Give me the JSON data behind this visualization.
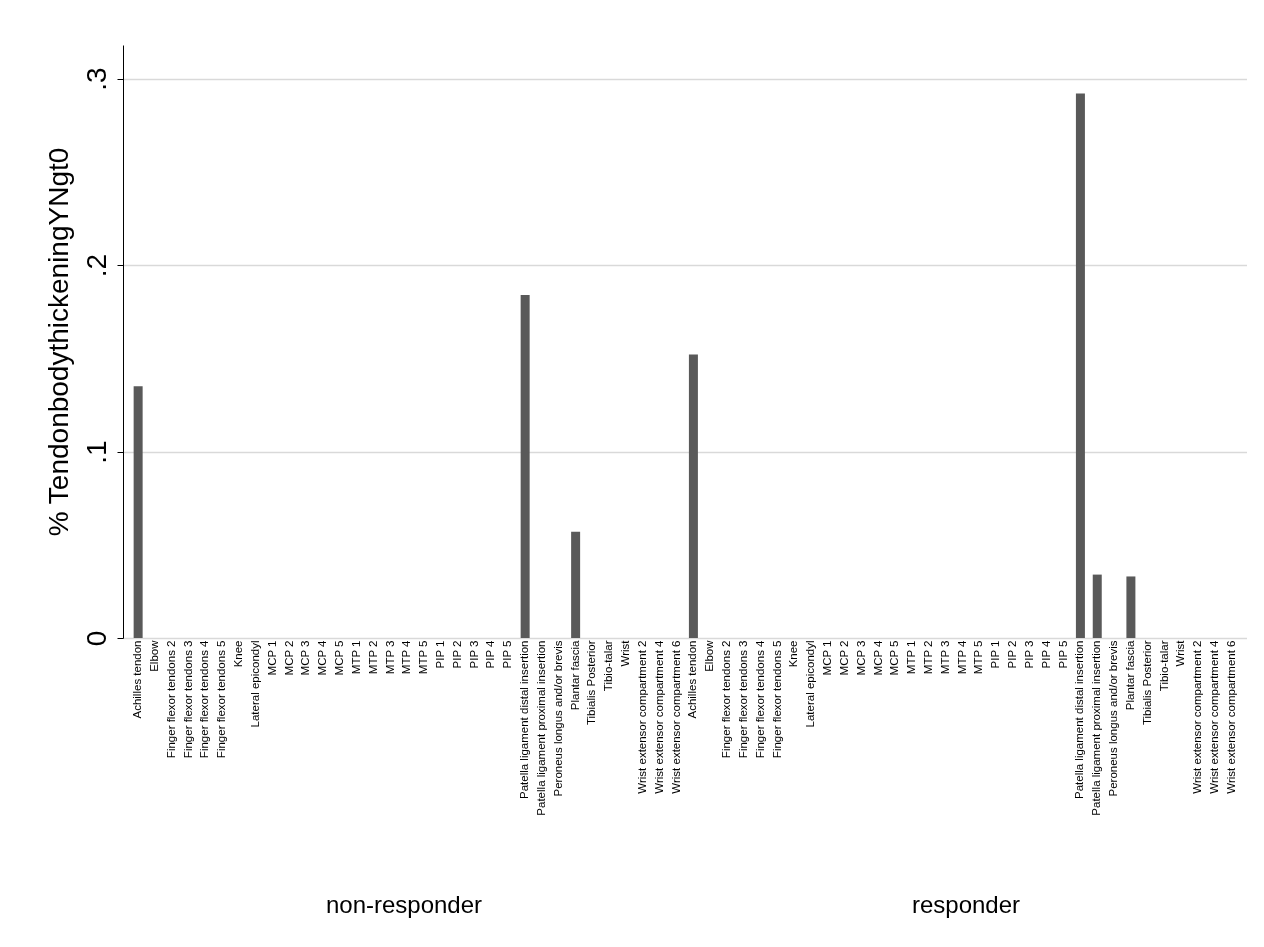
{
  "chart_data": {
    "type": "bar",
    "ylabel": "% TendonbodythickeningYNgt0",
    "categories": [
      "Achilles tendon",
      "Elbow",
      "Finger flexor tendons 2",
      "Finger flexor tendons 3",
      "Finger flexor tendons 4",
      "Finger flexor tendons 5",
      "Knee",
      "Lateral epicondyl",
      "MCP 1",
      "MCP 2",
      "MCP 3",
      "MCP 4",
      "MCP 5",
      "MTP 1",
      "MTP 2",
      "MTP 3",
      "MTP 4",
      "MTP 5",
      "PIP 1",
      "PIP 2",
      "PIP 3",
      "PIP 4",
      "PIP 5",
      "Patella ligament distal insertion",
      "Patella ligament proximal insertion",
      "Peroneus longus and/or brevis",
      "Plantar fascia",
      "Tibialis Posterior",
      "Tibio-talar",
      "Wrist",
      "Wrist extensor compartment 2",
      "Wrist extensor compartment 4",
      "Wrist extensor compartment 6",
      "Achilles tendon",
      "Elbow",
      "Finger flexor tendons 2",
      "Finger flexor tendons 3",
      "Finger flexor tendons 4",
      "Finger flexor tendons 5",
      "Knee",
      "Lateral epicondyl",
      "MCP 1",
      "MCP 2",
      "MCP 3",
      "MCP 4",
      "MCP 5",
      "MTP 1",
      "MTP 2",
      "MTP 3",
      "MTP 4",
      "MTP 5",
      "PIP 1",
      "PIP 2",
      "PIP 3",
      "PIP 4",
      "PIP 5",
      "Patella ligament distal insertion",
      "Patella ligament proximal insertion",
      "Peroneus longus and/or brevis",
      "Plantar fascia",
      "Tibialis Posterior",
      "Tibio-talar",
      "Wrist",
      "Wrist extensor compartment 2",
      "Wrist extensor compartment 4",
      "Wrist extensor compartment 6"
    ],
    "values": [
      0.135,
      0,
      0,
      0,
      0,
      0,
      0,
      0,
      0,
      0,
      0,
      0,
      0,
      0,
      0,
      0,
      0,
      0,
      0,
      0,
      0,
      0,
      0,
      0.184,
      0,
      0,
      0.057,
      0,
      0,
      0,
      0,
      0,
      0,
      0.152,
      0,
      0,
      0,
      0,
      0,
      0,
      0,
      0,
      0,
      0,
      0,
      0,
      0,
      0,
      0,
      0,
      0,
      0,
      0,
      0,
      0,
      0,
      0.292,
      0.034,
      0,
      0.033,
      0,
      0,
      0,
      0,
      0,
      0
    ],
    "color": "#595959",
    "ylim": [
      0,
      0.318
    ],
    "yticks": [
      {
        "value": 0,
        "label": "0"
      },
      {
        "value": 0.1,
        "label": ".1"
      },
      {
        "value": 0.2,
        "label": ".2"
      },
      {
        "value": 0.3,
        "label": ".3"
      }
    ],
    "grid": "y",
    "annotations": [
      "non-responder",
      "responder"
    ]
  }
}
